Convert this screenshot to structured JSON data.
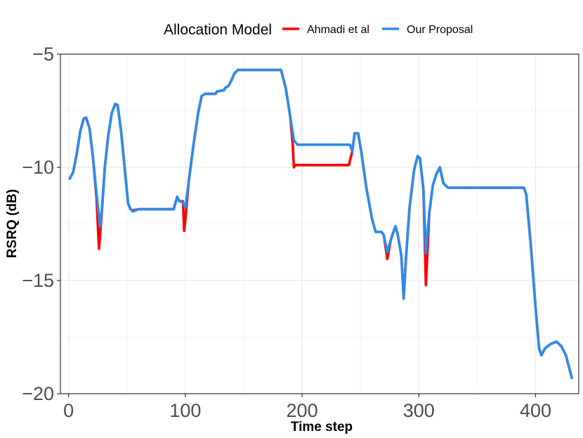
{
  "chart_data": {
    "type": "line",
    "xlabel": "Time step",
    "ylabel": "RSRQ (dB)",
    "xlim": [
      -7,
      437
    ],
    "ylim": [
      -20,
      -5
    ],
    "x_ticks": [
      0,
      100,
      200,
      300,
      400
    ],
    "x_tick_labels": [
      "0",
      "100",
      "200",
      "300",
      "400"
    ],
    "y_ticks": [
      -5,
      -10,
      -15,
      -20
    ],
    "y_tick_labels": [
      "−5",
      "−10",
      "−15",
      "−20"
    ],
    "grid": true,
    "legend": {
      "title": "Allocation Model",
      "position": "top",
      "entries": [
        "Ahmadi et al",
        "Our Proposal"
      ]
    },
    "series": [
      {
        "name": "Ahmadi et al",
        "color": "#ff0000",
        "points": [
          [
            1,
            -10.5
          ],
          [
            4,
            -10.2
          ],
          [
            7,
            -9.4
          ],
          [
            10,
            -8.4
          ],
          [
            13,
            -7.85
          ],
          [
            15,
            -7.8
          ],
          [
            18,
            -8.3
          ],
          [
            21,
            -9.6
          ],
          [
            24,
            -11.4
          ],
          [
            26,
            -13.6
          ],
          [
            27,
            -13.0
          ],
          [
            29,
            -11.6
          ],
          [
            31,
            -10.0
          ],
          [
            34,
            -8.6
          ],
          [
            37,
            -7.6
          ],
          [
            40,
            -7.2
          ],
          [
            42,
            -7.25
          ],
          [
            45,
            -8.4
          ],
          [
            48,
            -10.0
          ],
          [
            51,
            -11.6
          ],
          [
            53,
            -11.85
          ],
          [
            55,
            -11.9
          ],
          [
            60,
            -11.85
          ],
          [
            90,
            -11.85
          ],
          [
            93,
            -11.3
          ],
          [
            95,
            -11.5
          ],
          [
            98,
            -11.5
          ],
          [
            99,
            -12.8
          ],
          [
            100,
            -12.3
          ],
          [
            103,
            -10.6
          ],
          [
            107,
            -9.0
          ],
          [
            111,
            -7.6
          ],
          [
            114,
            -6.85
          ],
          [
            117,
            -6.75
          ],
          [
            126,
            -6.75
          ],
          [
            127,
            -6.65
          ],
          [
            133,
            -6.6
          ],
          [
            134,
            -6.5
          ],
          [
            137,
            -6.4
          ],
          [
            140,
            -6.1
          ],
          [
            142,
            -5.85
          ],
          [
            145,
            -5.7
          ],
          [
            182,
            -5.7
          ],
          [
            186,
            -6.5
          ],
          [
            190,
            -7.8
          ],
          [
            192,
            -9.0
          ],
          [
            193,
            -10.0
          ],
          [
            194,
            -9.9
          ],
          [
            210,
            -9.9
          ],
          [
            240,
            -9.9
          ],
          [
            243,
            -9.3
          ],
          [
            245,
            -8.5
          ],
          [
            248,
            -8.5
          ],
          [
            251,
            -9.4
          ],
          [
            255,
            -10.9
          ],
          [
            260,
            -12.3
          ],
          [
            263,
            -12.85
          ],
          [
            268,
            -12.85
          ],
          [
            270,
            -13.0
          ],
          [
            273,
            -14.05
          ],
          [
            276,
            -13.2
          ],
          [
            280,
            -12.6
          ],
          [
            282,
            -13.0
          ],
          [
            285,
            -13.9
          ],
          [
            287,
            -15.8
          ],
          [
            289,
            -14.0
          ],
          [
            292,
            -11.8
          ],
          [
            296,
            -10.1
          ],
          [
            299,
            -9.5
          ],
          [
            301,
            -9.6
          ],
          [
            304,
            -11.0
          ],
          [
            306,
            -15.2
          ],
          [
            309,
            -12.0
          ],
          [
            312,
            -10.8
          ],
          [
            315,
            -10.3
          ],
          [
            318,
            -10.0
          ],
          [
            321,
            -10.7
          ],
          [
            325,
            -10.9
          ],
          [
            390,
            -10.9
          ],
          [
            392,
            -11.2
          ],
          [
            396,
            -13.5
          ],
          [
            400,
            -16.2
          ],
          [
            403,
            -18.0
          ],
          [
            405,
            -18.3
          ],
          [
            408,
            -18.0
          ],
          [
            413,
            -17.8
          ],
          [
            418,
            -17.7
          ],
          [
            422,
            -17.9
          ],
          [
            426,
            -18.3
          ],
          [
            431,
            -19.3
          ]
        ]
      },
      {
        "name": "Our Proposal",
        "color": "#2b8ceb",
        "points": [
          [
            1,
            -10.5
          ],
          [
            4,
            -10.2
          ],
          [
            7,
            -9.4
          ],
          [
            10,
            -8.4
          ],
          [
            13,
            -7.85
          ],
          [
            15,
            -7.8
          ],
          [
            18,
            -8.3
          ],
          [
            21,
            -9.6
          ],
          [
            24,
            -11.2
          ],
          [
            27,
            -12.6
          ],
          [
            29,
            -11.6
          ],
          [
            31,
            -10.0
          ],
          [
            34,
            -8.6
          ],
          [
            37,
            -7.6
          ],
          [
            40,
            -7.2
          ],
          [
            42,
            -7.25
          ],
          [
            45,
            -8.4
          ],
          [
            48,
            -10.0
          ],
          [
            51,
            -11.6
          ],
          [
            53,
            -11.85
          ],
          [
            55,
            -11.95
          ],
          [
            60,
            -11.85
          ],
          [
            90,
            -11.85
          ],
          [
            93,
            -11.3
          ],
          [
            95,
            -11.5
          ],
          [
            98,
            -11.55
          ],
          [
            100,
            -11.8
          ],
          [
            103,
            -10.6
          ],
          [
            107,
            -9.0
          ],
          [
            111,
            -7.6
          ],
          [
            114,
            -6.85
          ],
          [
            117,
            -6.75
          ],
          [
            126,
            -6.75
          ],
          [
            127,
            -6.65
          ],
          [
            133,
            -6.6
          ],
          [
            134,
            -6.5
          ],
          [
            137,
            -6.4
          ],
          [
            140,
            -6.1
          ],
          [
            142,
            -5.85
          ],
          [
            145,
            -5.7
          ],
          [
            182,
            -5.7
          ],
          [
            186,
            -6.5
          ],
          [
            190,
            -7.8
          ],
          [
            193,
            -8.8
          ],
          [
            196,
            -9.0
          ],
          [
            215,
            -9.0
          ],
          [
            241,
            -9.0
          ],
          [
            243,
            -9.3
          ],
          [
            245,
            -8.5
          ],
          [
            248,
            -8.5
          ],
          [
            251,
            -9.4
          ],
          [
            255,
            -10.9
          ],
          [
            260,
            -12.3
          ],
          [
            263,
            -12.85
          ],
          [
            268,
            -12.85
          ],
          [
            270,
            -13.0
          ],
          [
            273,
            -13.75
          ],
          [
            276,
            -13.2
          ],
          [
            280,
            -12.6
          ],
          [
            282,
            -13.0
          ],
          [
            285,
            -13.9
          ],
          [
            287,
            -15.8
          ],
          [
            289,
            -14.0
          ],
          [
            292,
            -11.8
          ],
          [
            296,
            -10.1
          ],
          [
            299,
            -9.5
          ],
          [
            301,
            -9.6
          ],
          [
            304,
            -11.0
          ],
          [
            306,
            -13.8
          ],
          [
            309,
            -12.0
          ],
          [
            312,
            -10.8
          ],
          [
            315,
            -10.3
          ],
          [
            318,
            -10.0
          ],
          [
            321,
            -10.7
          ],
          [
            325,
            -10.9
          ],
          [
            390,
            -10.9
          ],
          [
            392,
            -11.2
          ],
          [
            396,
            -13.5
          ],
          [
            400,
            -16.2
          ],
          [
            403,
            -18.0
          ],
          [
            405,
            -18.3
          ],
          [
            408,
            -18.0
          ],
          [
            413,
            -17.8
          ],
          [
            418,
            -17.7
          ],
          [
            422,
            -17.9
          ],
          [
            426,
            -18.3
          ],
          [
            431,
            -19.3
          ]
        ]
      }
    ]
  }
}
